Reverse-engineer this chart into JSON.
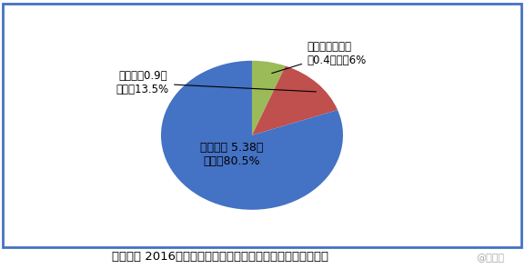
{
  "slices": [
    {
      "label_in": "缸体收入 5.38亿\n元，占80.5%",
      "value": 80.5,
      "color": "#4472C4"
    },
    {
      "label_out": "缸盖收入0.9亿\n元，占13.5%",
      "value": 13.5,
      "color": "#C0504D"
    },
    {
      "label_out": "缸体辅助部件收\n入0.4亿，占6%",
      "value": 6.0,
      "color": "#9BBB59"
    }
  ],
  "title": "瑞丰动力 2016财年各产品分部销售收入（单位：亿元人民币）",
  "watermark": "@格隆汇",
  "bg_color": "#FFFFFF",
  "border_color": "#4472C4",
  "title_fontsize": 9.5,
  "inner_label_color": "#000000",
  "inner_label_fontsize": 9,
  "outer_label_fontsize": 8.5
}
